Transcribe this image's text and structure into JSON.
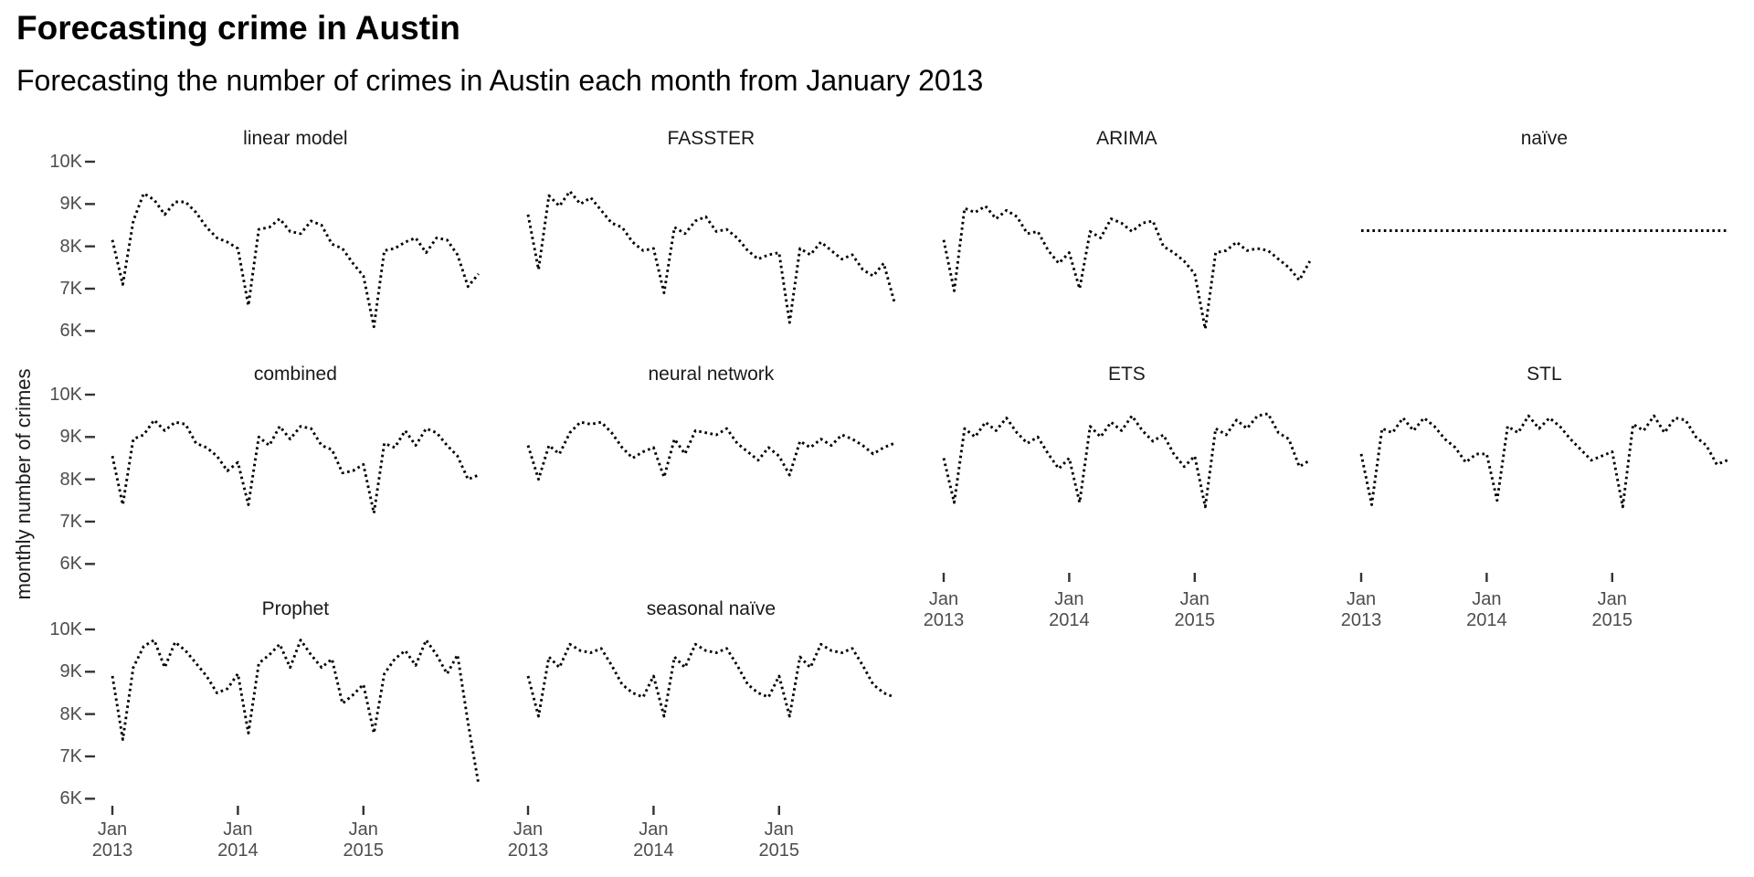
{
  "page": {
    "title": "Forecasting crime in Austin",
    "subtitle": "Forecasting the number of crimes in Austin each month from January 2013"
  },
  "chart_data": {
    "type": "line",
    "title": "Forecasting crime in Austin",
    "subtitle": "Forecasting the number of crimes in Austin each month from January 2013",
    "ylabel": "monthly number of crimes",
    "xlabel": "",
    "unit": "thousands of crimes per month (values in K)",
    "frequency": "monthly",
    "x_start": "Jan 2013",
    "x_end": "Dec 2015",
    "n_points_per_series": 36,
    "ylim": [
      5.8,
      10.3
    ],
    "grid": "off",
    "legend": "none",
    "line_style": "dotted",
    "line_color": "#000000",
    "facet_layout": {
      "ncol": 4,
      "nrow": 3,
      "note": "10 panels; bottom row has only 2 panels; x axes shown under lowest panel of each column"
    },
    "y_ticks": [
      {
        "label": "10K",
        "value": 10
      },
      {
        "label": "9K",
        "value": 9
      },
      {
        "label": "8K",
        "value": 8
      },
      {
        "label": "7K",
        "value": 7
      },
      {
        "label": "6K",
        "value": 6
      }
    ],
    "x_ticks": [
      {
        "line1": "Jan",
        "line2": "2013",
        "month_index": 0
      },
      {
        "line1": "Jan",
        "line2": "2014",
        "month_index": 12
      },
      {
        "line1": "Jan",
        "line2": "2015",
        "month_index": 24
      }
    ],
    "series": [
      {
        "name": "linear model",
        "values": [
          8.15,
          7.1,
          8.6,
          9.25,
          9.1,
          8.75,
          9.05,
          9.05,
          8.8,
          8.45,
          8.2,
          8.1,
          7.95,
          6.6,
          8.4,
          8.45,
          8.65,
          8.35,
          8.3,
          8.6,
          8.5,
          8.05,
          7.95,
          7.6,
          7.3,
          6.1,
          7.9,
          7.95,
          8.1,
          8.2,
          7.85,
          8.2,
          8.15,
          7.8,
          7.05,
          7.35
        ]
      },
      {
        "name": "FASSTER",
        "values": [
          8.75,
          7.45,
          9.2,
          8.95,
          9.3,
          9.0,
          9.15,
          8.85,
          8.55,
          8.45,
          8.1,
          7.9,
          7.95,
          6.9,
          8.45,
          8.3,
          8.6,
          8.7,
          8.35,
          8.4,
          8.2,
          7.9,
          7.7,
          7.8,
          7.85,
          6.2,
          7.95,
          7.8,
          8.1,
          7.9,
          7.7,
          7.8,
          7.45,
          7.3,
          7.6,
          6.7
        ]
      },
      {
        "name": "ARIMA",
        "values": [
          8.15,
          6.95,
          8.9,
          8.8,
          8.95,
          8.65,
          8.85,
          8.7,
          8.3,
          8.35,
          7.9,
          7.6,
          7.85,
          7.0,
          8.35,
          8.2,
          8.65,
          8.55,
          8.35,
          8.55,
          8.6,
          8.0,
          7.85,
          7.65,
          7.35,
          6.05,
          7.85,
          7.9,
          8.1,
          7.9,
          7.95,
          7.9,
          7.7,
          7.5,
          7.2,
          7.65
        ]
      },
      {
        "name": "naïve",
        "values": [
          8.37,
          8.37,
          8.37,
          8.37,
          8.37,
          8.37,
          8.37,
          8.37,
          8.37,
          8.37,
          8.37,
          8.37,
          8.37,
          8.37,
          8.37,
          8.37,
          8.37,
          8.37,
          8.37,
          8.37,
          8.37,
          8.37,
          8.37,
          8.37,
          8.37,
          8.37,
          8.37,
          8.37,
          8.37,
          8.37,
          8.37,
          8.37,
          8.37,
          8.37,
          8.37,
          8.37
        ]
      },
      {
        "name": "combined",
        "values": [
          8.55,
          7.4,
          8.95,
          9.05,
          9.4,
          9.15,
          9.35,
          9.3,
          8.85,
          8.75,
          8.55,
          8.2,
          8.4,
          7.4,
          9.0,
          8.8,
          9.25,
          8.95,
          9.25,
          9.2,
          8.8,
          8.7,
          8.15,
          8.2,
          8.35,
          7.2,
          8.85,
          8.75,
          9.15,
          8.8,
          9.2,
          9.1,
          8.8,
          8.55,
          8.0,
          8.1
        ]
      },
      {
        "name": "neural network",
        "values": [
          8.8,
          8.0,
          8.8,
          8.6,
          9.1,
          9.35,
          9.3,
          9.35,
          9.1,
          8.75,
          8.5,
          8.65,
          8.75,
          8.05,
          8.95,
          8.6,
          9.15,
          9.1,
          9.05,
          9.2,
          8.85,
          8.65,
          8.45,
          8.75,
          8.55,
          8.1,
          8.9,
          8.75,
          8.95,
          8.8,
          9.05,
          8.95,
          8.8,
          8.6,
          8.75,
          8.85
        ]
      },
      {
        "name": "ETS",
        "values": [
          8.5,
          7.45,
          9.2,
          9.0,
          9.35,
          9.15,
          9.45,
          9.1,
          8.85,
          9.0,
          8.6,
          8.25,
          8.5,
          7.45,
          9.25,
          9.0,
          9.35,
          9.15,
          9.5,
          9.15,
          8.9,
          9.05,
          8.6,
          8.3,
          8.55,
          7.35,
          9.2,
          9.05,
          9.4,
          9.2,
          9.5,
          9.55,
          9.1,
          8.95,
          8.3,
          8.45
        ]
      },
      {
        "name": "STL",
        "values": [
          8.6,
          7.4,
          9.2,
          9.1,
          9.45,
          9.15,
          9.45,
          9.25,
          8.95,
          8.75,
          8.4,
          8.6,
          8.6,
          7.5,
          9.25,
          9.1,
          9.5,
          9.2,
          9.45,
          9.25,
          8.95,
          8.7,
          8.45,
          8.55,
          8.65,
          7.35,
          9.3,
          9.15,
          9.5,
          9.1,
          9.45,
          9.4,
          9.0,
          8.8,
          8.35,
          8.45
        ]
      },
      {
        "name": "Prophet",
        "values": [
          8.9,
          7.4,
          9.1,
          9.6,
          9.75,
          9.1,
          9.7,
          9.5,
          9.2,
          8.9,
          8.5,
          8.6,
          8.95,
          7.55,
          9.2,
          9.4,
          9.65,
          9.1,
          9.75,
          9.4,
          9.1,
          9.3,
          8.25,
          8.45,
          8.7,
          7.55,
          8.95,
          9.3,
          9.5,
          9.15,
          9.75,
          9.4,
          8.95,
          9.4,
          7.8,
          6.35
        ]
      },
      {
        "name": "seasonal naïve",
        "values": [
          8.9,
          7.95,
          9.35,
          9.1,
          9.65,
          9.5,
          9.45,
          9.55,
          9.15,
          8.7,
          8.5,
          8.4,
          8.9,
          7.95,
          9.35,
          9.1,
          9.65,
          9.5,
          9.45,
          9.55,
          9.15,
          8.7,
          8.5,
          8.4,
          8.9,
          7.95,
          9.35,
          9.1,
          9.65,
          9.5,
          9.45,
          9.55,
          9.15,
          8.7,
          8.5,
          8.4
        ]
      }
    ]
  },
  "colors": {
    "background": "#ffffff",
    "line": "#000000",
    "tick_text": "#4d4d4d",
    "tick_mark": "#333333",
    "facet_title_text": "#1a1a1a",
    "title_text": "#000000"
  }
}
